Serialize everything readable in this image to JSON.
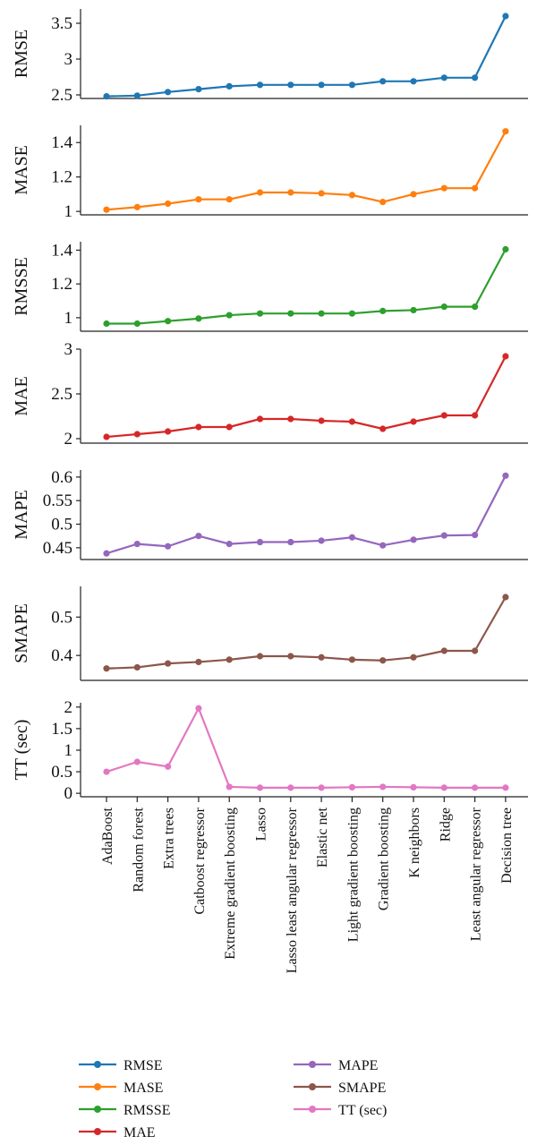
{
  "chart_data": {
    "type": "line",
    "categories": [
      "AdaBoost",
      "Random forest",
      "Extra trees",
      "Catboost regressor",
      "Extreme gradient boosting",
      "Lasso",
      "Lasso least angular regressor",
      "Elastic net",
      "Light gradient boosting",
      "Gradient boosting",
      "K neighbors",
      "Ridge",
      "Least angular regressor",
      "Decision tree"
    ],
    "panels": [
      {
        "ylabel": "RMSE",
        "color": "#1f77b4",
        "ylim": [
          2.45,
          3.7
        ],
        "yticks": [
          2.5,
          3,
          3.5
        ],
        "ytick_labels": [
          "2.5",
          "3",
          "3.5"
        ],
        "values": [
          2.48,
          2.49,
          2.54,
          2.58,
          2.62,
          2.64,
          2.64,
          2.64,
          2.64,
          2.69,
          2.69,
          2.74,
          2.74,
          3.6
        ]
      },
      {
        "ylabel": "MASE",
        "color": "#ff7f0e",
        "ylim": [
          0.98,
          1.5
        ],
        "yticks": [
          1,
          1.2,
          1.4
        ],
        "ytick_labels": [
          "1",
          "1.2",
          "1.4"
        ],
        "values": [
          1.01,
          1.025,
          1.045,
          1.07,
          1.07,
          1.11,
          1.11,
          1.105,
          1.095,
          1.055,
          1.1,
          1.135,
          1.135,
          1.465
        ]
      },
      {
        "ylabel": "RMSSE",
        "color": "#2ca02c",
        "ylim": [
          0.92,
          1.45
        ],
        "yticks": [
          1,
          1.2,
          1.4
        ],
        "ytick_labels": [
          "1",
          "1.2",
          "1.4"
        ],
        "values": [
          0.965,
          0.965,
          0.98,
          0.995,
          1.015,
          1.025,
          1.025,
          1.025,
          1.025,
          1.04,
          1.045,
          1.065,
          1.065,
          1.405
        ]
      },
      {
        "ylabel": "MAE",
        "color": "#d62728",
        "ylim": [
          1.95,
          3.0
        ],
        "yticks": [
          2,
          2.5,
          3
        ],
        "ytick_labels": [
          "2",
          "2.5",
          "3"
        ],
        "values": [
          2.02,
          2.05,
          2.08,
          2.13,
          2.13,
          2.22,
          2.22,
          2.2,
          2.19,
          2.11,
          2.19,
          2.26,
          2.26,
          2.92
        ]
      },
      {
        "ylabel": "MAPE",
        "color": "#9467bd",
        "ylim": [
          0.425,
          0.615
        ],
        "yticks": [
          0.45,
          0.5,
          0.55,
          0.6
        ],
        "ytick_labels": [
          "0.45",
          "0.5",
          "0.55",
          "0.6"
        ],
        "values": [
          0.438,
          0.458,
          0.453,
          0.475,
          0.458,
          0.462,
          0.462,
          0.465,
          0.472,
          0.455,
          0.467,
          0.476,
          0.477,
          0.603
        ]
      },
      {
        "ylabel": "SMAPE",
        "color": "#8c564b",
        "ylim": [
          0.335,
          0.58
        ],
        "yticks": [
          0.4,
          0.5
        ],
        "ytick_labels": [
          "0.4",
          "0.5"
        ],
        "values": [
          0.366,
          0.369,
          0.379,
          0.383,
          0.389,
          0.398,
          0.398,
          0.395,
          0.389,
          0.387,
          0.395,
          0.412,
          0.412,
          0.552
        ]
      },
      {
        "ylabel": "TT (sec)",
        "color": "#e377c2",
        "ylim": [
          -0.08,
          2.1
        ],
        "yticks": [
          0,
          0.5,
          1,
          1.5,
          2
        ],
        "ytick_labels": [
          "0",
          "0.5",
          "1",
          "1.5",
          "2"
        ],
        "values": [
          0.5,
          0.73,
          0.62,
          1.97,
          0.15,
          0.13,
          0.13,
          0.13,
          0.14,
          0.15,
          0.14,
          0.13,
          0.13,
          0.13
        ]
      }
    ],
    "legend": {
      "placement": "bottom",
      "left_column": [
        {
          "label": "RMSE",
          "color": "#1f77b4"
        },
        {
          "label": "MASE",
          "color": "#ff7f0e"
        },
        {
          "label": "RMSSE",
          "color": "#2ca02c"
        },
        {
          "label": "MAE",
          "color": "#d62728"
        }
      ],
      "right_column": [
        {
          "label": "MAPE",
          "color": "#9467bd"
        },
        {
          "label": "SMAPE",
          "color": "#8c564b"
        },
        {
          "label": "TT (sec)",
          "color": "#e377c2"
        }
      ]
    },
    "grid": false
  }
}
